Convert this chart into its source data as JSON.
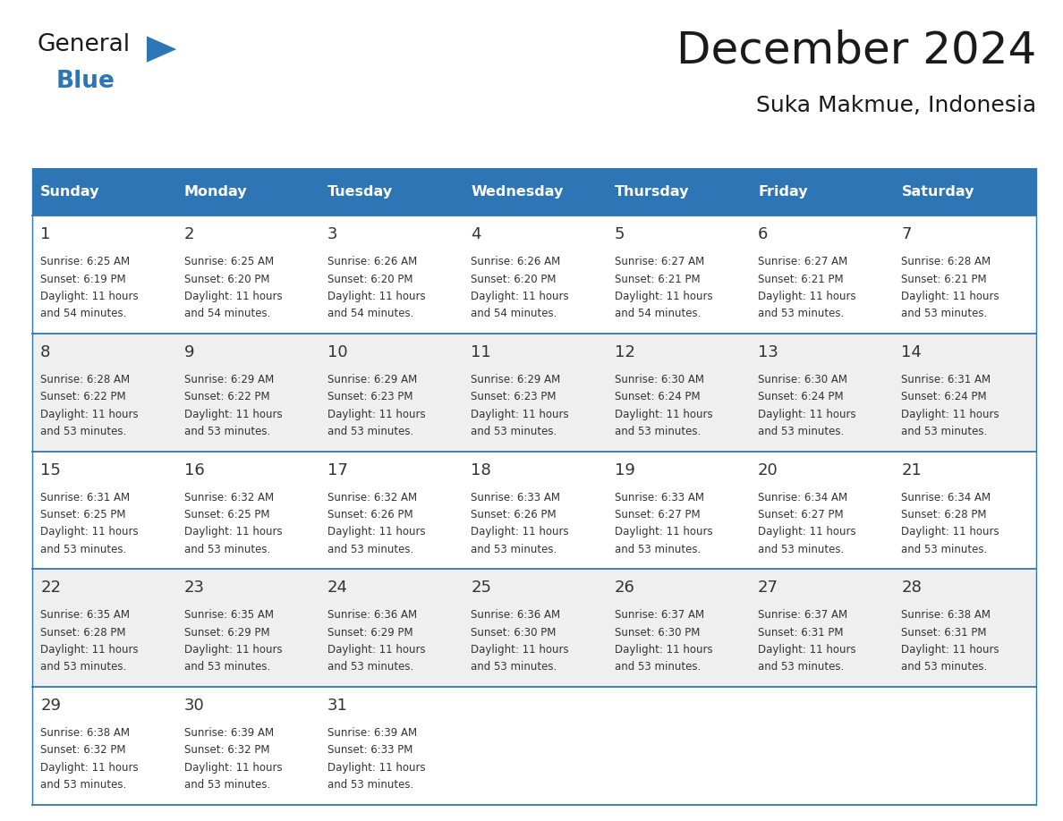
{
  "title": "December 2024",
  "subtitle": "Suka Makmue, Indonesia",
  "header_color": "#2E75B6",
  "header_text_color": "#FFFFFF",
  "day_names": [
    "Sunday",
    "Monday",
    "Tuesday",
    "Wednesday",
    "Thursday",
    "Friday",
    "Saturday"
  ],
  "bg_color": "#FFFFFF",
  "cell_bg_even": "#EFEFEF",
  "cell_bg_odd": "#FFFFFF",
  "grid_line_color": "#2E75B6",
  "day_num_color": "#333333",
  "text_color": "#333333",
  "title_color": "#1A1A1A",
  "calendar_data": [
    [
      {
        "day": 1,
        "sunrise": "6:25 AM",
        "sunset": "6:19 PM",
        "daylight_h": "11 hours",
        "daylight_m": "54 minutes."
      },
      {
        "day": 2,
        "sunrise": "6:25 AM",
        "sunset": "6:20 PM",
        "daylight_h": "11 hours",
        "daylight_m": "54 minutes."
      },
      {
        "day": 3,
        "sunrise": "6:26 AM",
        "sunset": "6:20 PM",
        "daylight_h": "11 hours",
        "daylight_m": "54 minutes."
      },
      {
        "day": 4,
        "sunrise": "6:26 AM",
        "sunset": "6:20 PM",
        "daylight_h": "11 hours",
        "daylight_m": "54 minutes."
      },
      {
        "day": 5,
        "sunrise": "6:27 AM",
        "sunset": "6:21 PM",
        "daylight_h": "11 hours",
        "daylight_m": "54 minutes."
      },
      {
        "day": 6,
        "sunrise": "6:27 AM",
        "sunset": "6:21 PM",
        "daylight_h": "11 hours",
        "daylight_m": "53 minutes."
      },
      {
        "day": 7,
        "sunrise": "6:28 AM",
        "sunset": "6:21 PM",
        "daylight_h": "11 hours",
        "daylight_m": "53 minutes."
      }
    ],
    [
      {
        "day": 8,
        "sunrise": "6:28 AM",
        "sunset": "6:22 PM",
        "daylight_h": "11 hours",
        "daylight_m": "53 minutes."
      },
      {
        "day": 9,
        "sunrise": "6:29 AM",
        "sunset": "6:22 PM",
        "daylight_h": "11 hours",
        "daylight_m": "53 minutes."
      },
      {
        "day": 10,
        "sunrise": "6:29 AM",
        "sunset": "6:23 PM",
        "daylight_h": "11 hours",
        "daylight_m": "53 minutes."
      },
      {
        "day": 11,
        "sunrise": "6:29 AM",
        "sunset": "6:23 PM",
        "daylight_h": "11 hours",
        "daylight_m": "53 minutes."
      },
      {
        "day": 12,
        "sunrise": "6:30 AM",
        "sunset": "6:24 PM",
        "daylight_h": "11 hours",
        "daylight_m": "53 minutes."
      },
      {
        "day": 13,
        "sunrise": "6:30 AM",
        "sunset": "6:24 PM",
        "daylight_h": "11 hours",
        "daylight_m": "53 minutes."
      },
      {
        "day": 14,
        "sunrise": "6:31 AM",
        "sunset": "6:24 PM",
        "daylight_h": "11 hours",
        "daylight_m": "53 minutes."
      }
    ],
    [
      {
        "day": 15,
        "sunrise": "6:31 AM",
        "sunset": "6:25 PM",
        "daylight_h": "11 hours",
        "daylight_m": "53 minutes."
      },
      {
        "day": 16,
        "sunrise": "6:32 AM",
        "sunset": "6:25 PM",
        "daylight_h": "11 hours",
        "daylight_m": "53 minutes."
      },
      {
        "day": 17,
        "sunrise": "6:32 AM",
        "sunset": "6:26 PM",
        "daylight_h": "11 hours",
        "daylight_m": "53 minutes."
      },
      {
        "day": 18,
        "sunrise": "6:33 AM",
        "sunset": "6:26 PM",
        "daylight_h": "11 hours",
        "daylight_m": "53 minutes."
      },
      {
        "day": 19,
        "sunrise": "6:33 AM",
        "sunset": "6:27 PM",
        "daylight_h": "11 hours",
        "daylight_m": "53 minutes."
      },
      {
        "day": 20,
        "sunrise": "6:34 AM",
        "sunset": "6:27 PM",
        "daylight_h": "11 hours",
        "daylight_m": "53 minutes."
      },
      {
        "day": 21,
        "sunrise": "6:34 AM",
        "sunset": "6:28 PM",
        "daylight_h": "11 hours",
        "daylight_m": "53 minutes."
      }
    ],
    [
      {
        "day": 22,
        "sunrise": "6:35 AM",
        "sunset": "6:28 PM",
        "daylight_h": "11 hours",
        "daylight_m": "53 minutes."
      },
      {
        "day": 23,
        "sunrise": "6:35 AM",
        "sunset": "6:29 PM",
        "daylight_h": "11 hours",
        "daylight_m": "53 minutes."
      },
      {
        "day": 24,
        "sunrise": "6:36 AM",
        "sunset": "6:29 PM",
        "daylight_h": "11 hours",
        "daylight_m": "53 minutes."
      },
      {
        "day": 25,
        "sunrise": "6:36 AM",
        "sunset": "6:30 PM",
        "daylight_h": "11 hours",
        "daylight_m": "53 minutes."
      },
      {
        "day": 26,
        "sunrise": "6:37 AM",
        "sunset": "6:30 PM",
        "daylight_h": "11 hours",
        "daylight_m": "53 minutes."
      },
      {
        "day": 27,
        "sunrise": "6:37 AM",
        "sunset": "6:31 PM",
        "daylight_h": "11 hours",
        "daylight_m": "53 minutes."
      },
      {
        "day": 28,
        "sunrise": "6:38 AM",
        "sunset": "6:31 PM",
        "daylight_h": "11 hours",
        "daylight_m": "53 minutes."
      }
    ],
    [
      {
        "day": 29,
        "sunrise": "6:38 AM",
        "sunset": "6:32 PM",
        "daylight_h": "11 hours",
        "daylight_m": "53 minutes."
      },
      {
        "day": 30,
        "sunrise": "6:39 AM",
        "sunset": "6:32 PM",
        "daylight_h": "11 hours",
        "daylight_m": "53 minutes."
      },
      {
        "day": 31,
        "sunrise": "6:39 AM",
        "sunset": "6:33 PM",
        "daylight_h": "11 hours",
        "daylight_m": "53 minutes."
      },
      null,
      null,
      null,
      null
    ]
  ]
}
